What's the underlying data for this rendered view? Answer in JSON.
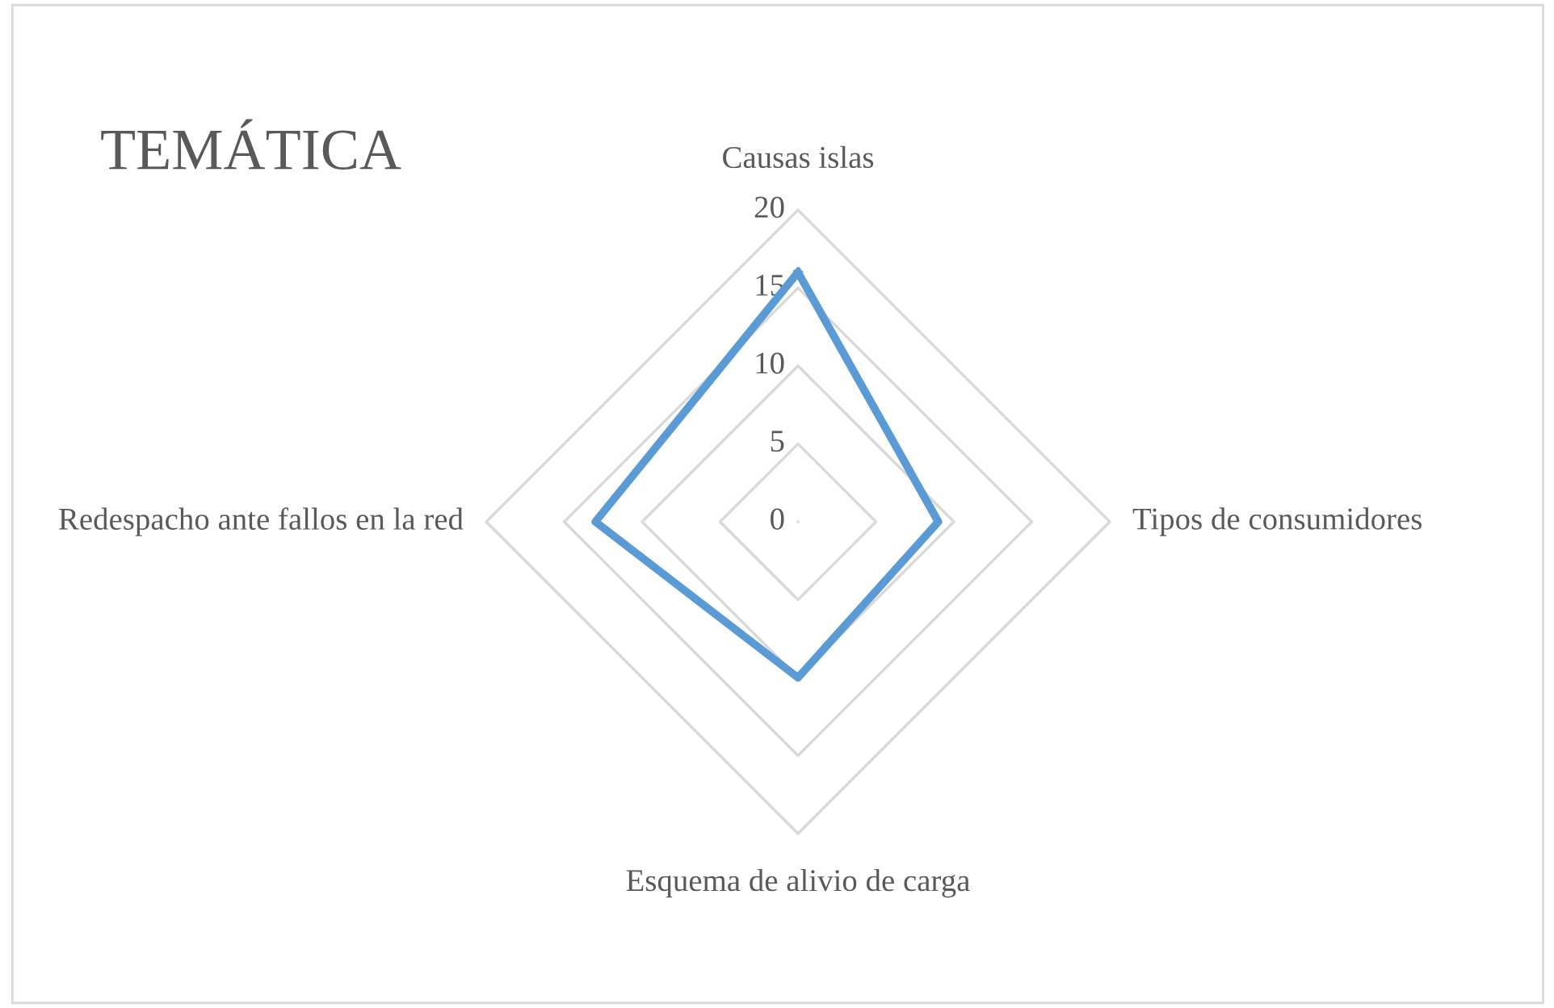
{
  "chart_data": {
    "type": "radar",
    "title": "TEMÁTICA",
    "categories": [
      "Causas islas",
      "Tipos de consumidores",
      "Esquema de alivio de carga",
      "Redespacho ante fallos en la red"
    ],
    "series": [
      {
        "color": "#5b9bd5",
        "values": [
          16,
          9,
          10,
          13
        ]
      }
    ],
    "ylim": [
      0,
      20
    ],
    "yticks": [
      0,
      5,
      10,
      15,
      20
    ],
    "grid": true,
    "marker": "none",
    "line_style": "solid"
  }
}
